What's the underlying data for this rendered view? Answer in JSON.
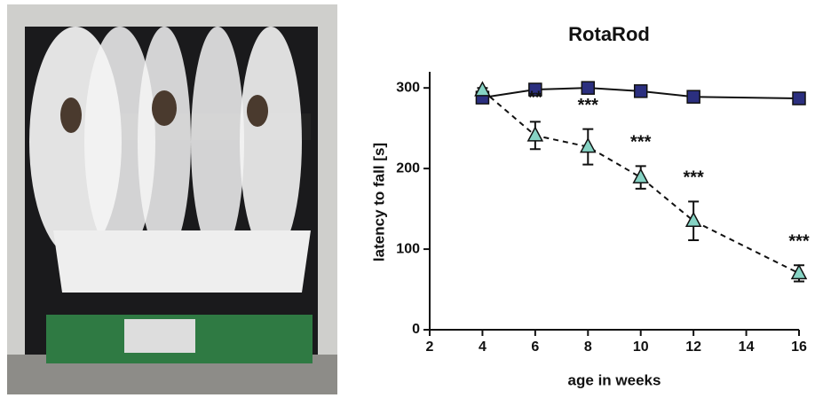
{
  "chart_data": {
    "type": "line",
    "title": "RotaRod",
    "x_label": "age in weeks",
    "y_label": "latency to fall [s]",
    "x": [
      4,
      6,
      8,
      10,
      12,
      16
    ],
    "series": [
      {
        "color": "#2b2f7f",
        "marker": "square",
        "dash": "solid",
        "values": [
          288,
          298,
          300,
          296,
          289,
          287
        ]
      },
      {
        "color": "#86d3c4",
        "marker": "triangle",
        "dash": "dashed",
        "values": [
          297,
          241,
          227,
          189,
          135,
          70
        ],
        "errors": [
          3,
          17,
          22,
          14,
          24,
          10
        ]
      }
    ],
    "annotations": [
      {
        "x": 6,
        "text": "**"
      },
      {
        "x": 8,
        "text": "***"
      },
      {
        "x": 10,
        "text": "***"
      },
      {
        "x": 12,
        "text": "***"
      },
      {
        "x": 16,
        "text": "***"
      }
    ],
    "xlim": [
      2,
      16
    ],
    "xticks": [
      2,
      4,
      6,
      8,
      10,
      12,
      14,
      16
    ],
    "ylim": [
      0,
      320
    ],
    "yticks": [
      0,
      100,
      200,
      300
    ]
  }
}
